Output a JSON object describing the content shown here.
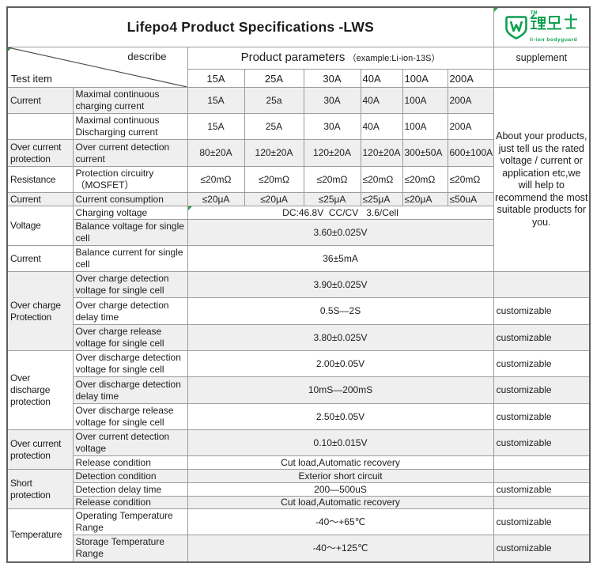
{
  "title": "Lifepo4 Product Specifications -LWS",
  "logo": {
    "tm": "TM",
    "cn": "锂卫士",
    "en": "li-ion bodyguard"
  },
  "colors": {
    "brand_green": "#0ba14f",
    "row_shade": "#efefef"
  },
  "header": {
    "describe": "describe",
    "test_item": "Test  item",
    "product_parameters": "Product parameters",
    "example": "（example:Li-ion-13S）",
    "supplement": "supplement",
    "amp_columns": [
      "15A",
      "25A",
      "30A",
      "40A",
      "100A",
      "200A"
    ]
  },
  "supplement_note": "About your products, just tell us the rated voltage /  current or application etc,we will help to recommend the most suitable products for you.",
  "rows": [
    {
      "group": "Current",
      "grouprows": 1,
      "desc": "Maximal continuous charging current",
      "values": [
        "15A",
        "25a",
        "30A",
        "40A",
        "100A",
        "200A"
      ]
    },
    {
      "group": "",
      "grouprows": 1,
      "desc": "Maximal continuous Discharging current",
      "values": [
        "15A",
        "25A",
        "30A",
        "40A",
        "100A",
        "200A"
      ]
    },
    {
      "group": "Over current protection",
      "grouprows": 1,
      "desc": "Over current detection current",
      "values": [
        "80±20A",
        "120±20A",
        "120±20A",
        "120±20A",
        "300±50A",
        "600±100A"
      ]
    },
    {
      "group": "Resistance",
      "grouprows": 1,
      "desc": "Protection  circuitry （MOSFET）",
      "values": [
        "≤20mΩ",
        "≤20mΩ",
        "≤20mΩ",
        "≤20mΩ",
        "≤20mΩ",
        "≤20mΩ"
      ]
    },
    {
      "group": "Current",
      "grouprows": 1,
      "desc": "Current consumption",
      "values": [
        "≤20μA",
        "≤20μA",
        "≤25μA",
        "≤25μA",
        "≤20μA",
        "≤50uA"
      ]
    },
    {
      "group": "Voltage",
      "grouprows": 2,
      "desc": "Charging voltage",
      "value": "DC:46.8V  CC/CV   3.6/Cell"
    },
    {
      "desc": "Balance voltage for single cell",
      "value": "3.60±0.025V"
    },
    {
      "group": "Current",
      "grouprows": 1,
      "desc": "Balance current for single cell",
      "value": "36±5mA"
    },
    {
      "group": "Over charge Protection",
      "grouprows": 3,
      "desc": "Over charge detection voltage for single cell",
      "value": "3.90±0.025V",
      "sup": ""
    },
    {
      "desc": "Over charge detection delay time",
      "value": "0.5S—2S",
      "sup": "customizable"
    },
    {
      "desc": "Over charge release voltage for single cell",
      "value": "3.80±0.025V",
      "sup": "customizable"
    },
    {
      "group": "Over discharge protection",
      "grouprows": 3,
      "desc": "Over discharge detection voltage for single cell",
      "value": "2.00±0.05V",
      "sup": "customizable"
    },
    {
      "desc": "Over discharge detection delay time",
      "value": "10mS—200mS",
      "sup": "customizable"
    },
    {
      "desc": "Over discharge release voltage for single cell",
      "value": "2.50±0.05V",
      "sup": "customizable"
    },
    {
      "group": "Over current protection",
      "grouprows": 2,
      "desc": "Over current detection voltage",
      "value": "0.10±0.015V",
      "sup": "customizable"
    },
    {
      "desc": "Release condition",
      "value": "Cut load,Automatic recovery",
      "sup": ""
    },
    {
      "group": "Short protection",
      "grouprows": 3,
      "desc": "Detection condition",
      "value": "Exterior short circuit",
      "sup": ""
    },
    {
      "desc": "Detection delay time",
      "value": "200—500uS",
      "sup": "customizable"
    },
    {
      "desc": "Release condition",
      "value": "Cut load,Automatic recovery",
      "sup": ""
    },
    {
      "group": "Temperature",
      "grouprows": 2,
      "desc": "Operating Temperature Range",
      "value": "-40～+65℃",
      "sup": "customizable"
    },
    {
      "desc": "Storage Temperature Range",
      "value": "-40～+125℃",
      "sup": "customizable"
    }
  ]
}
